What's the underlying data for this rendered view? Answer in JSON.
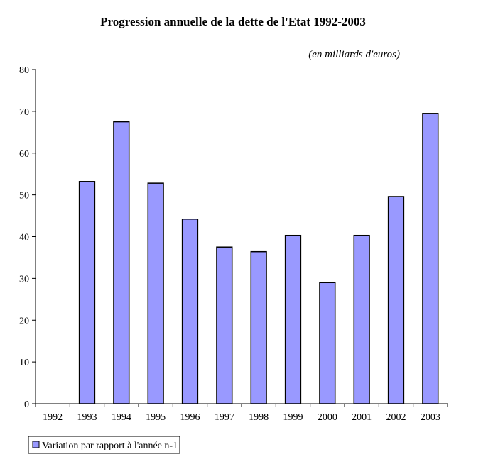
{
  "chart_data": {
    "type": "bar",
    "title": "Progression annuelle de la dette de l'Etat 1992-2003",
    "subtitle": "(en milliards d'euros)",
    "categories": [
      "1992",
      "1993",
      "1994",
      "1995",
      "1996",
      "1997",
      "1998",
      "1999",
      "2000",
      "2001",
      "2002",
      "2003"
    ],
    "series": [
      {
        "name": "Variation par rapport à l'année n-1",
        "values": [
          null,
          53.2,
          67.5,
          52.8,
          44.2,
          37.5,
          36.4,
          40.3,
          29.0,
          40.3,
          49.6,
          69.5
        ]
      }
    ],
    "ylim": [
      0,
      80
    ],
    "yticks": [
      "0",
      "10",
      "20",
      "30",
      "40",
      "50",
      "60",
      "70",
      "80"
    ],
    "grid": false,
    "legend_position": "bottom-left",
    "colors": {
      "bar_fill": "#9999ff",
      "bar_stroke": "#000000"
    }
  }
}
